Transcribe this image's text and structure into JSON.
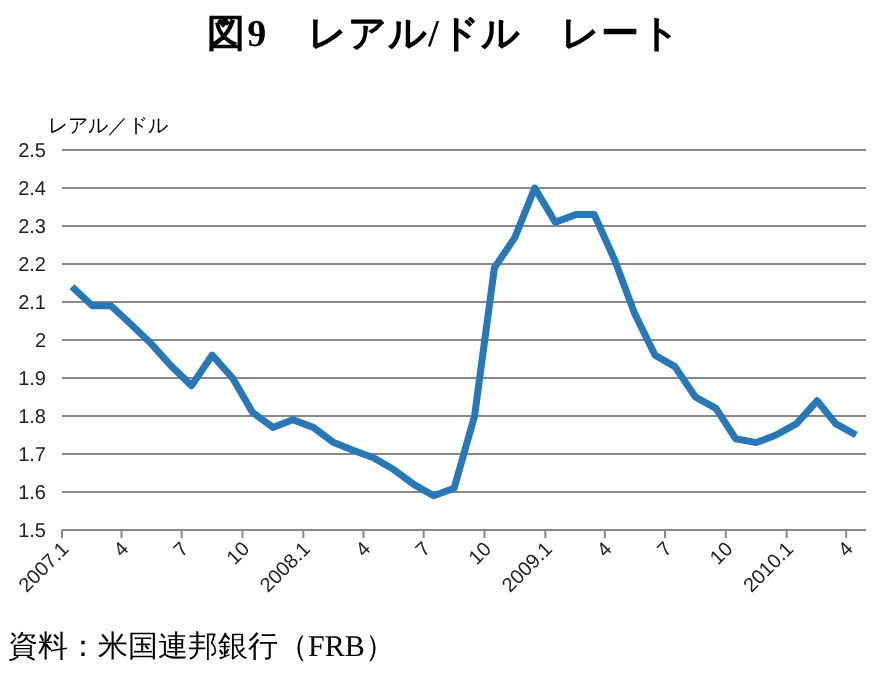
{
  "chart_data": {
    "type": "line",
    "title": "図9　レアル/ドル　レート",
    "ylabel": "レアル／ドル",
    "annotations": [
      "資料：米国連邦銀行（FRB）"
    ],
    "x": [
      "2007-01-16",
      "2007-02-16",
      "2007-03-16",
      "2007-04-16",
      "2007-05-16",
      "2007-06-16",
      "2007-07-16",
      "2007-08-16",
      "2007-09-16",
      "2007-10-16",
      "2007-11-16",
      "2007-12-16",
      "2008-01-16",
      "2008-02-16",
      "2008-03-16",
      "2008-04-16",
      "2008-05-16",
      "2008-06-16",
      "2008-07-16",
      "2008-08-16",
      "2008-09-16",
      "2008-10-16",
      "2008-11-16",
      "2008-12-16",
      "2009-01-16",
      "2009-02-16",
      "2009-03-16",
      "2009-04-16",
      "2009-05-16",
      "2009-06-16",
      "2009-07-16",
      "2009-08-16",
      "2009-09-16",
      "2009-10-16",
      "2009-11-16",
      "2009-12-16",
      "2010-01-16",
      "2010-02-16",
      "2010-03-16",
      "2010-04-16"
    ],
    "series": [
      {
        "color": "#2878b8",
        "values": [
          2.14,
          2.09,
          2.09,
          2.04,
          1.99,
          1.93,
          1.88,
          1.96,
          1.9,
          1.81,
          1.77,
          1.79,
          1.77,
          1.73,
          1.71,
          1.69,
          1.66,
          1.62,
          1.59,
          1.61,
          1.8,
          2.19,
          2.27,
          2.4,
          2.31,
          2.33,
          2.33,
          2.21,
          2.07,
          1.96,
          1.93,
          1.85,
          1.82,
          1.74,
          1.73,
          1.75,
          1.78,
          1.84,
          1.78,
          1.75
        ]
      }
    ],
    "xlim": [
      "2007-01",
      "2010-05"
    ],
    "xticks": [
      {
        "value": "2007-01",
        "label": "2007.1"
      },
      {
        "value": "2007-04",
        "label": "4"
      },
      {
        "value": "2007-07",
        "label": "7"
      },
      {
        "value": "2007-10",
        "label": "10"
      },
      {
        "value": "2008-01",
        "label": "2008.1"
      },
      {
        "value": "2008-04",
        "label": "4"
      },
      {
        "value": "2008-07",
        "label": "7"
      },
      {
        "value": "2008-10",
        "label": "10"
      },
      {
        "value": "2009-01",
        "label": "2009.1"
      },
      {
        "value": "2009-04",
        "label": "4"
      },
      {
        "value": "2009-07",
        "label": "7"
      },
      {
        "value": "2009-10",
        "label": "10"
      },
      {
        "value": "2010-01",
        "label": "2010.1"
      },
      {
        "value": "2010-04",
        "label": "4"
      }
    ],
    "ylim": [
      1.5,
      2.5
    ],
    "yticks": [
      1.5,
      1.6,
      1.7,
      1.8,
      1.9,
      2,
      2.1,
      2.2,
      2.3,
      2.4,
      2.5
    ],
    "grid": "y",
    "legend": false,
    "marker": "none",
    "line_style": "solid"
  }
}
